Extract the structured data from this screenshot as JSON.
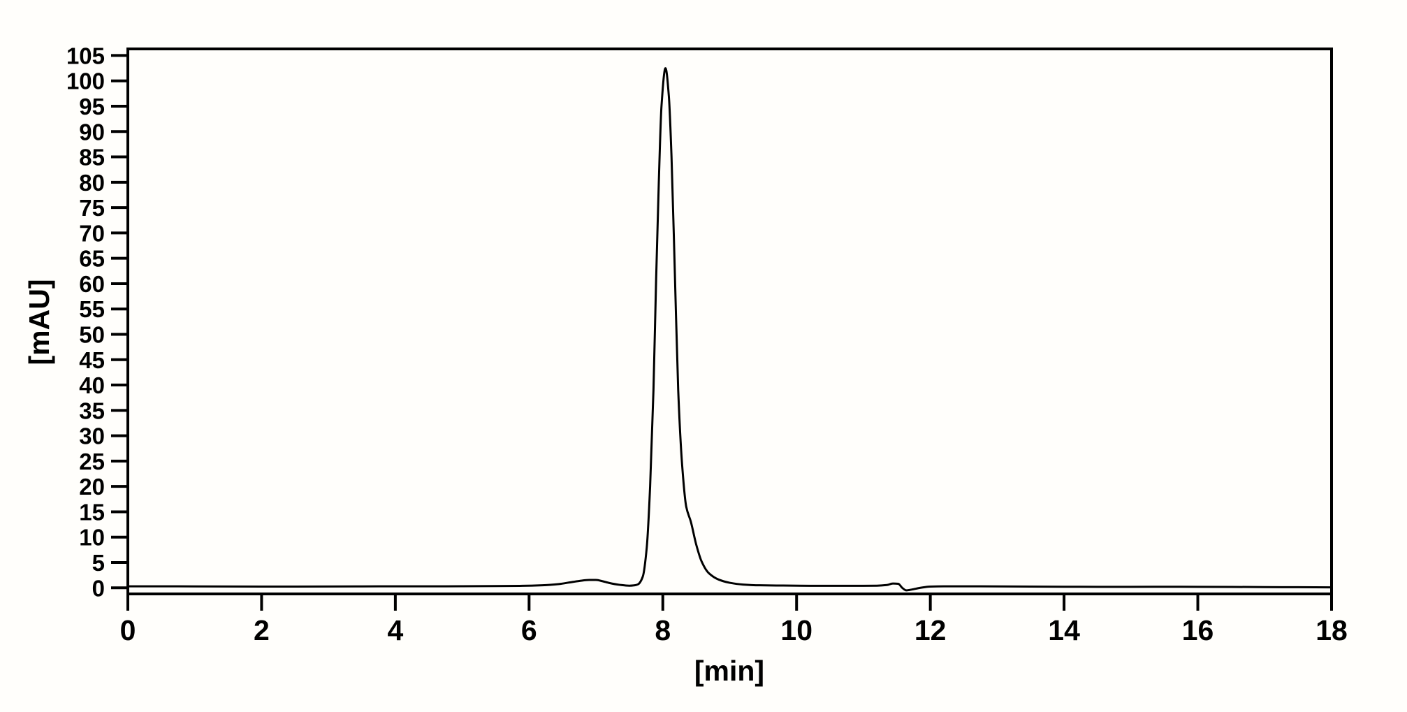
{
  "page": {
    "background": "#fffefb"
  },
  "chart_data": {
    "type": "line",
    "title": "",
    "xlabel": "[min]",
    "ylabel": "[mAU]",
    "xlim": [
      0,
      18
    ],
    "ylim": [
      -1.2,
      106.3
    ],
    "xticks": [
      0,
      2,
      4,
      6,
      8,
      10,
      12,
      14,
      16,
      18
    ],
    "yticks": [
      0,
      5,
      10,
      15,
      20,
      25,
      30,
      35,
      40,
      45,
      50,
      55,
      60,
      65,
      70,
      75,
      80,
      85,
      90,
      95,
      100,
      105
    ],
    "grid": false,
    "legend_position": "none",
    "axis_color": "#000000",
    "line_color": "#000000",
    "frame": "box",
    "annotations": {
      "main_peak": {
        "time_min": 8.04,
        "height_mAU": 102.5
      },
      "minor_peak": {
        "time_min": 6.95,
        "height_mAU": 1.55
      },
      "baseline_disturbance": {
        "time_min": 11.5,
        "height_mAU": 0.85,
        "dip_mAU": -0.5
      }
    },
    "series": [
      {
        "name": "detector-signal",
        "x": [
          0,
          0.5,
          1,
          1.5,
          2,
          2.5,
          3,
          3.5,
          4,
          4.5,
          5,
          5.5,
          5.9,
          6.2,
          6.45,
          6.6,
          6.75,
          6.9,
          7.0,
          7.1,
          7.2,
          7.35,
          7.5,
          7.58,
          7.63,
          7.7,
          7.76,
          7.81,
          7.86,
          7.9,
          7.94,
          7.98,
          8.04,
          8.09,
          8.13,
          8.18,
          8.23,
          8.29,
          8.35,
          8.42,
          8.5,
          8.58,
          8.68,
          8.84,
          9.0,
          9.2,
          9.45,
          9.8,
          10.2,
          10.6,
          11.0,
          11.2,
          11.35,
          11.44,
          11.52,
          11.58,
          11.64,
          11.72,
          11.85,
          12.0,
          12.2,
          12.5,
          13,
          13.5,
          14,
          14.5,
          15,
          15.5,
          16,
          16.5,
          17,
          17.5,
          18
        ],
        "y": [
          0.3,
          0.3,
          0.28,
          0.26,
          0.25,
          0.25,
          0.26,
          0.28,
          0.3,
          0.3,
          0.32,
          0.35,
          0.4,
          0.5,
          0.75,
          1.05,
          1.35,
          1.55,
          1.55,
          1.3,
          0.95,
          0.6,
          0.42,
          0.5,
          0.7,
          2.2,
          8,
          20,
          39,
          61,
          80,
          95,
          102.5,
          97,
          85,
          62,
          39,
          24,
          16,
          13,
          8.5,
          5.2,
          3.0,
          1.6,
          1.0,
          0.65,
          0.5,
          0.45,
          0.4,
          0.4,
          0.4,
          0.42,
          0.55,
          0.85,
          0.8,
          0.0,
          -0.5,
          -0.35,
          0.0,
          0.25,
          0.3,
          0.3,
          0.28,
          0.25,
          0.22,
          0.2,
          0.2,
          0.22,
          0.2,
          0.18,
          0.15,
          0.12,
          0.1
        ]
      }
    ]
  }
}
